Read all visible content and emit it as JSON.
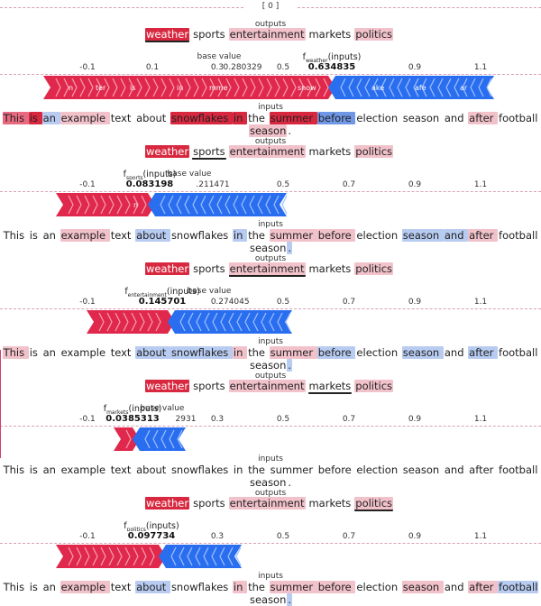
{
  "header": {
    "index_label": "[ 0 ]"
  },
  "labels": {
    "outputs": "outputs",
    "inputs": "inputs",
    "base_value": "base value"
  },
  "colors": {
    "positive": "#e0284c",
    "negative": "#2a6ef0"
  },
  "outputs": [
    "weather",
    "sports",
    "entertainment",
    "markets",
    "politics"
  ],
  "ticks": [
    "-0.1",
    "0.1",
    "0.3",
    "0.5",
    "0.7",
    "0.9",
    "1.1"
  ],
  "tokens_line1": [
    "This ",
    "is ",
    "an ",
    "example ",
    "text ",
    "about ",
    "snowflakes ",
    "in ",
    "the ",
    "summer ",
    "before ",
    "election ",
    "season ",
    "and ",
    "after ",
    "football"
  ],
  "tokens_line2": [
    "season",
    "."
  ],
  "panels": [
    {
      "selected_output": "weather",
      "f_label_prefix": "f",
      "f_label_sub": "weather",
      "f_label_suffix": "(inputs)",
      "f_value": "0.634835",
      "base_value": "0.280329",
      "force_labels": [
        "n",
        "ter",
        "is",
        "in",
        "mme",
        "snow",
        "ake",
        "afe",
        "ar"
      ],
      "token_colors_line1": [
        "pos2",
        "pos3",
        "neg1",
        "pos1",
        "none",
        "none",
        "pos3",
        "pos3",
        "none",
        "pos3",
        "neg2",
        "none",
        "none",
        "none",
        "pos1",
        "none"
      ],
      "token_colors_line2": [
        "pos1",
        "none"
      ]
    },
    {
      "selected_output": "sports",
      "f_label_prefix": "f",
      "f_label_sub": "sports",
      "f_label_suffix": "(inputs)",
      "f_value": "0.083198",
      "base_value": ".211471",
      "base_value_tick_overlay": ").3",
      "force_labels": [
        "n"
      ],
      "token_colors_line1": [
        "none",
        "none",
        "none",
        "pos1",
        "none",
        "neg1",
        "none",
        "neg1",
        "none",
        "pos1",
        "pos1",
        "none",
        "neg1",
        "neg1",
        "pos1",
        "none"
      ],
      "token_colors_line2": [
        "none",
        "neg1"
      ]
    },
    {
      "selected_output": "entertainment",
      "f_label_prefix": "f",
      "f_label_sub": "entertainment",
      "f_label_suffix": "(inputs)",
      "f_value": "0.145701",
      "base_value": ".274045",
      "force_labels": [],
      "token_colors_line1": [
        "pos1",
        "none",
        "none",
        "none",
        "none",
        "neg1",
        "neg1",
        "pos1",
        "none",
        "pos1",
        "neg1",
        "none",
        "neg1",
        "none",
        "neg1",
        "none"
      ],
      "token_colors_line2": [
        "none",
        "neg1"
      ]
    },
    {
      "selected_output": "markets",
      "f_label_prefix": "f",
      "f_label_sub": "markets",
      "f_label_suffix": "(inputs)",
      "f_value": "0.0385313",
      "base_value": "2931",
      "force_labels": [],
      "token_colors_line1": [
        "none",
        "none",
        "none",
        "none",
        "none",
        "none",
        "none",
        "none",
        "none",
        "none",
        "none",
        "none",
        "none",
        "none",
        "none",
        "none"
      ],
      "token_colors_line2": [
        "none",
        "none"
      ]
    },
    {
      "selected_output": "politics",
      "f_label_prefix": "f",
      "f_label_sub": "politics",
      "f_label_suffix": "(inputs)",
      "f_value": "0.097734",
      "base_value": "",
      "force_labels": [],
      "token_colors_line1": [
        "none",
        "none",
        "none",
        "pos1",
        "none",
        "neg1",
        "none",
        "pos1",
        "none",
        "pos1",
        "pos1",
        "none",
        "pos1",
        "none",
        "pos1",
        "neg1"
      ],
      "token_colors_line2": [
        "none",
        "neg1"
      ]
    }
  ]
}
